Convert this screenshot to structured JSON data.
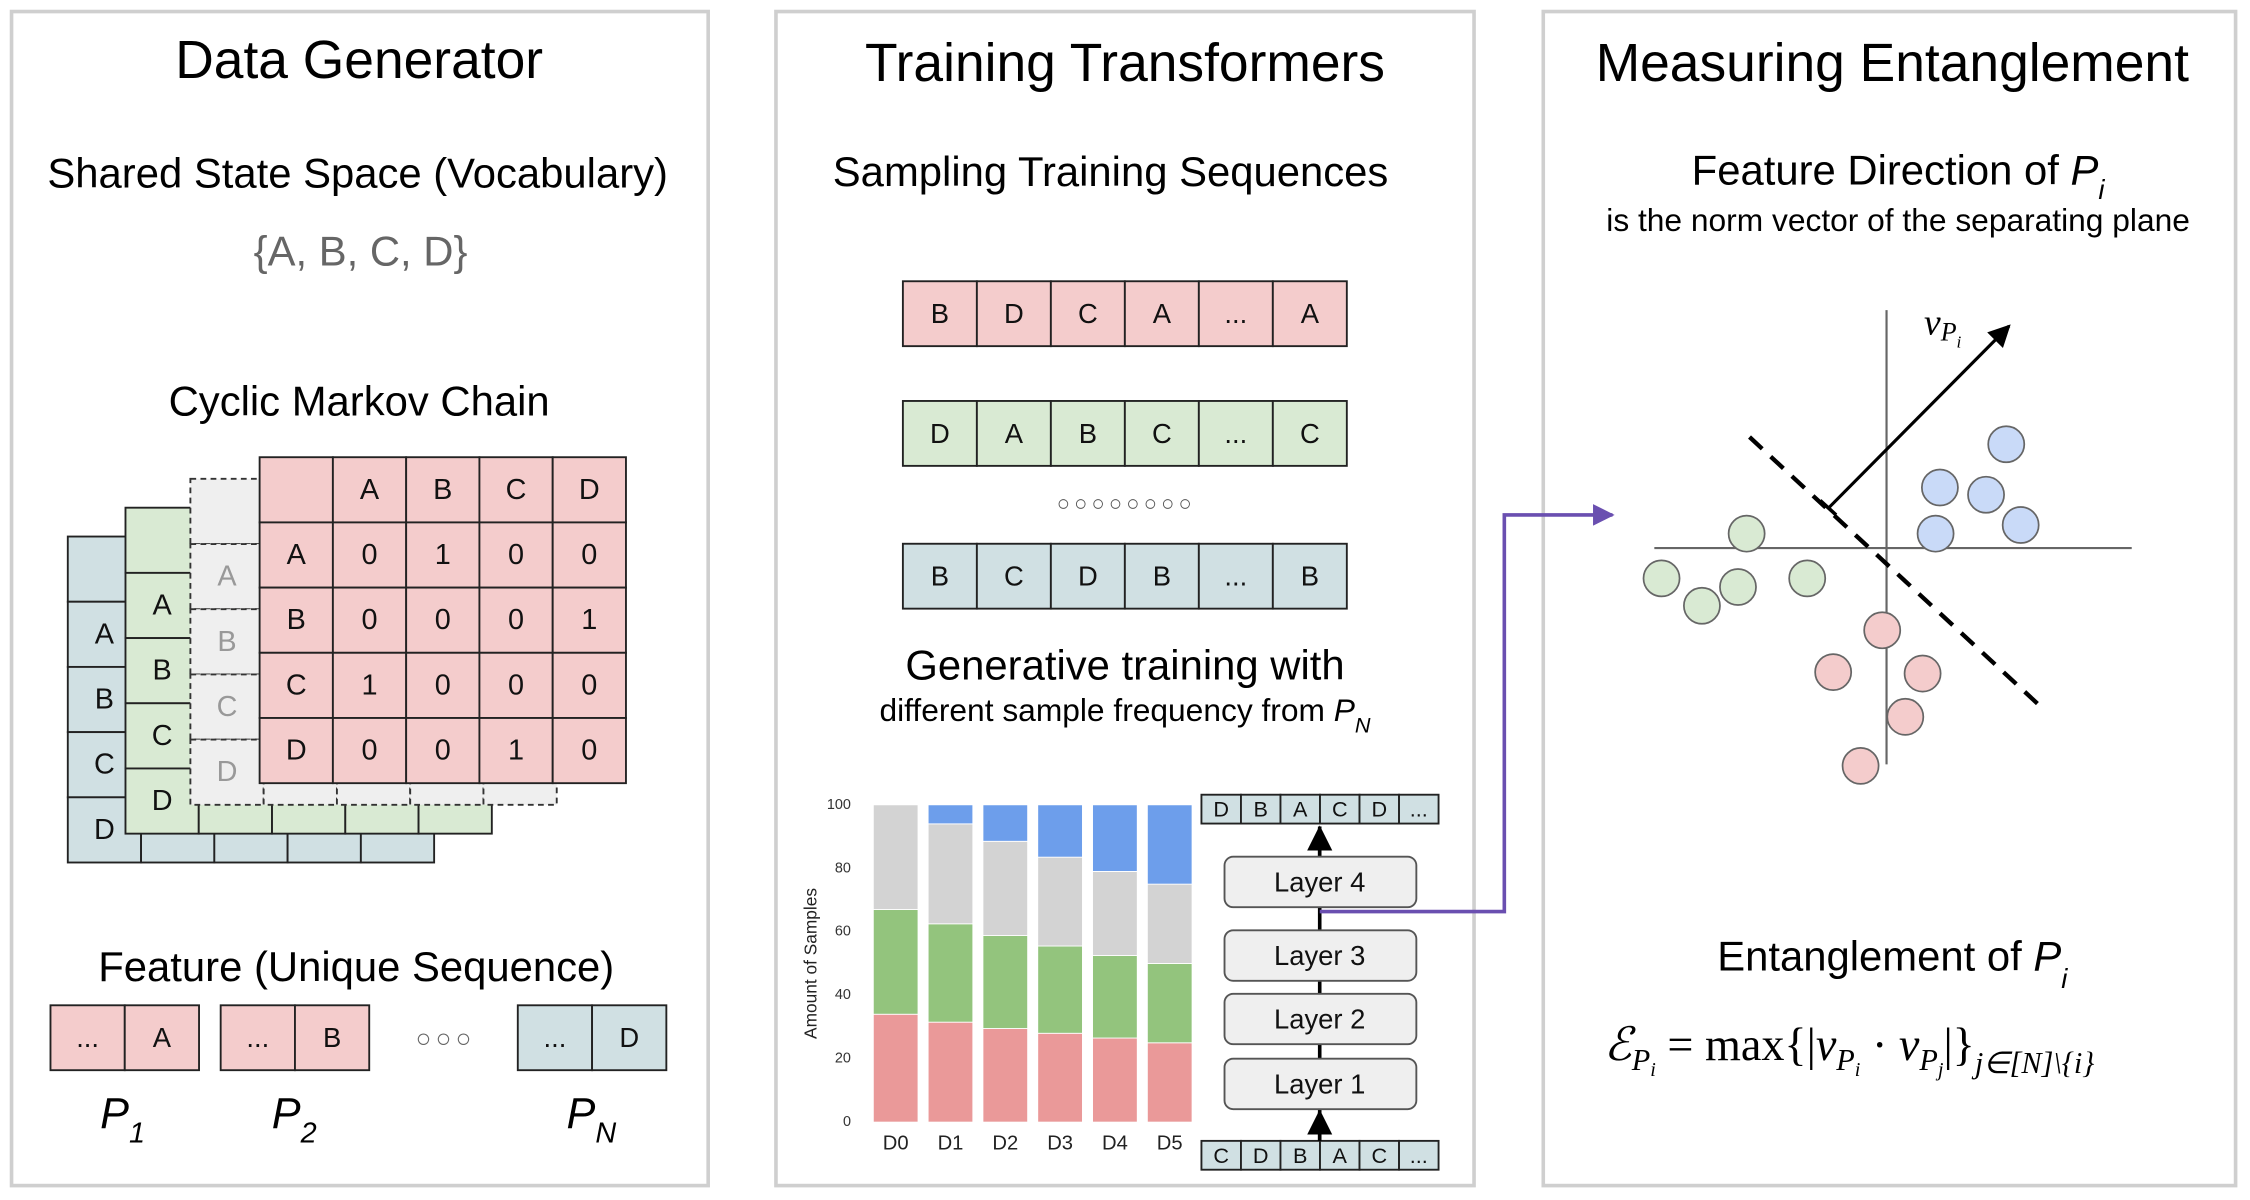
{
  "colors": {
    "red": "#f4cccc",
    "green": "#d9ead3",
    "blue": "#d0e0e3",
    "gray": "#efefef",
    "purple": "#6a4fb0",
    "bar_red": "#ea9999",
    "bar_green": "#93c47d",
    "bar_gray": "#d3d3d3",
    "bar_blue": "#6d9eeb",
    "pt_green": "#d9ead3",
    "pt_blue": "#c9daf8",
    "pt_red": "#f4cccc"
  },
  "panel1": {
    "title": "Data Generator",
    "subtitle": "Shared State Space (Vocabulary)",
    "vocab": "{A, B, C, D}",
    "markov_title": "Cyclic Markov Chain",
    "matrix": {
      "cols": [
        "A",
        "B",
        "C",
        "D"
      ],
      "rows": [
        "A",
        "B",
        "C",
        "D"
      ],
      "values": [
        [
          "0",
          "1",
          "0",
          "0"
        ],
        [
          "0",
          "0",
          "0",
          "1"
        ],
        [
          "1",
          "0",
          "0",
          "0"
        ],
        [
          "0",
          "0",
          "1",
          "0"
        ]
      ]
    },
    "feature_title": "Feature (Unique Sequence)",
    "features": [
      {
        "cells": [
          "...",
          "A"
        ],
        "label": "P",
        "sub": "1"
      },
      {
        "cells": [
          "...",
          "B"
        ],
        "label": "P",
        "sub": "2"
      },
      {
        "cells": [
          "...",
          "D"
        ],
        "label": "P",
        "sub": "N"
      }
    ],
    "ellipsis": "○○○"
  },
  "panel2": {
    "title": "Training Transformers",
    "subtitle": "Sampling Training Sequences",
    "sequences": [
      [
        "B",
        "D",
        "C",
        "A",
        "...",
        "A"
      ],
      [
        "D",
        "A",
        "B",
        "C",
        "...",
        "C"
      ],
      [
        "B",
        "C",
        "D",
        "B",
        "...",
        "B"
      ]
    ],
    "dots": "○○○○○○○○",
    "gen_title": "Generative training with",
    "gen_sub": "different sample frequency from ",
    "gen_sub_var": "P",
    "gen_sub_sub": "N",
    "layers": [
      "Layer 4",
      "Layer 3",
      "Layer 2",
      "Layer 1"
    ],
    "output_seq": [
      "D",
      "B",
      "A",
      "C",
      "D",
      "..."
    ],
    "input_seq": [
      "C",
      "D",
      "B",
      "A",
      "C",
      "..."
    ]
  },
  "chart_data": {
    "type": "bar",
    "stacked": true,
    "categories": [
      "D0",
      "D1",
      "D2",
      "D3",
      "D4",
      "D5"
    ],
    "ylabel": "Amount of Samples",
    "ylim": [
      0,
      100
    ],
    "yticks": [
      "0",
      "20",
      "40",
      "60",
      "80",
      "100"
    ],
    "series": [
      {
        "color": "#ea9999",
        "values": [
          34,
          31.5,
          29.5,
          28,
          26.5,
          25
        ]
      },
      {
        "color": "#93c47d",
        "values": [
          33,
          31,
          29.3,
          27.5,
          26,
          25
        ]
      },
      {
        "color": "#d3d3d3",
        "values": [
          33,
          31.5,
          29.7,
          28,
          26.5,
          25
        ]
      },
      {
        "color": "#6d9eeb",
        "values": [
          0,
          6,
          11.5,
          16.5,
          21,
          25
        ]
      }
    ]
  },
  "panel3": {
    "title": "Measuring Entanglement",
    "feature_dir": "Feature Direction of ",
    "feature_var": "P",
    "feature_sub": "i",
    "feature_desc": "is the norm vector of the separating plane",
    "vector_label": "v",
    "vector_sub": "P",
    "vector_subsub": "i",
    "ent_title": "Entanglement of ",
    "ent_var": "P",
    "ent_sub": "i",
    "formula": {
      "E": "ℰ",
      "E_sub": "P",
      "E_subsub": "i",
      "eq": " = max{|",
      "v1": "v",
      "v1_sub": "P",
      "v1_subsub": "i",
      "dot": " · ",
      "v2": "v",
      "v2_sub": "P",
      "v2_subsub": "j",
      "close": "|}",
      "range": "j∈[N]\\{i}"
    }
  }
}
